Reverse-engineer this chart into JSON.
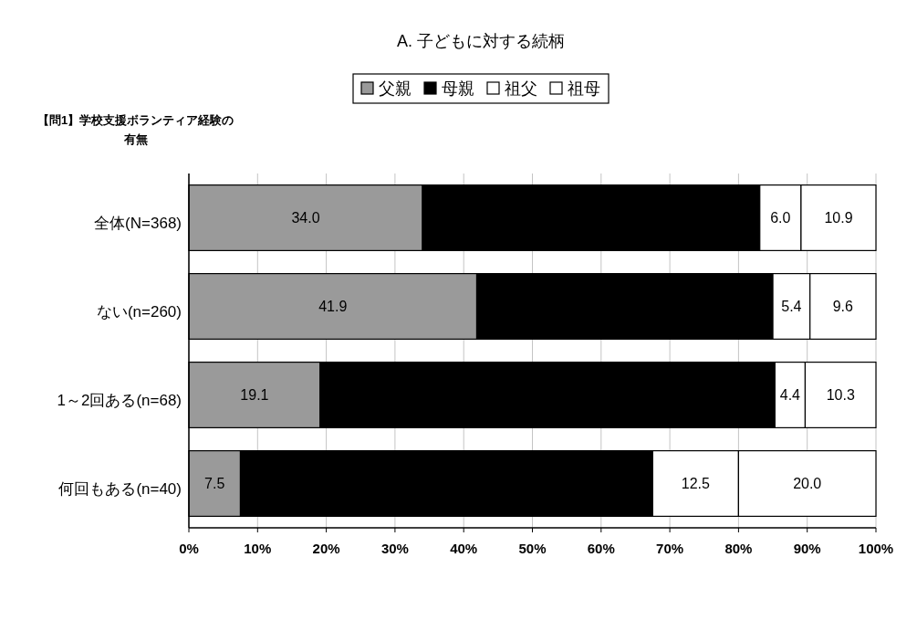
{
  "chart_data": {
    "type": "bar",
    "orientation": "horizontal",
    "stacked": true,
    "title": "A. 子どもに対する続柄",
    "ylabel": "【問1】学校支援ボランティア経験の有無",
    "categories": [
      "全体(N=368)",
      "ない(n=260)",
      "1～2回ある(n=68)",
      "何回もある(n=40)"
    ],
    "series": [
      {
        "name": "父親",
        "color": "#9a9a9a",
        "values": [
          34.0,
          41.9,
          19.1,
          7.5
        ],
        "value_labels": [
          "34.0",
          "41.9",
          "19.1",
          "7.5"
        ]
      },
      {
        "name": "母親",
        "color": "#000000",
        "values": [
          49.1,
          43.1,
          66.2,
          60.0
        ]
      },
      {
        "name": "祖父",
        "color": "#ffffff",
        "values": [
          6.0,
          5.4,
          4.4,
          12.5
        ],
        "value_labels": [
          "6.0",
          "5.4",
          "4.4",
          "12.5"
        ]
      },
      {
        "name": "祖母",
        "color": "#ffffff",
        "values": [
          10.9,
          9.6,
          10.3,
          20.0
        ],
        "value_labels": [
          "10.9",
          "9.6",
          "10.3",
          "20.0"
        ]
      }
    ],
    "xlim": [
      0,
      100
    ],
    "xticks": [
      {
        "value": 0,
        "label": "0%"
      },
      {
        "value": 10,
        "label": "10%"
      },
      {
        "value": 20,
        "label": "20%"
      },
      {
        "value": 30,
        "label": "30%"
      },
      {
        "value": 40,
        "label": "40%"
      },
      {
        "value": 50,
        "label": "50%"
      },
      {
        "value": 60,
        "label": "60%"
      },
      {
        "value": 70,
        "label": "70%"
      },
      {
        "value": 80,
        "label": "80%"
      },
      {
        "value": 90,
        "label": "90%"
      },
      {
        "value": 100,
        "label": "100%"
      }
    ],
    "grid": "x",
    "legend": "top"
  }
}
